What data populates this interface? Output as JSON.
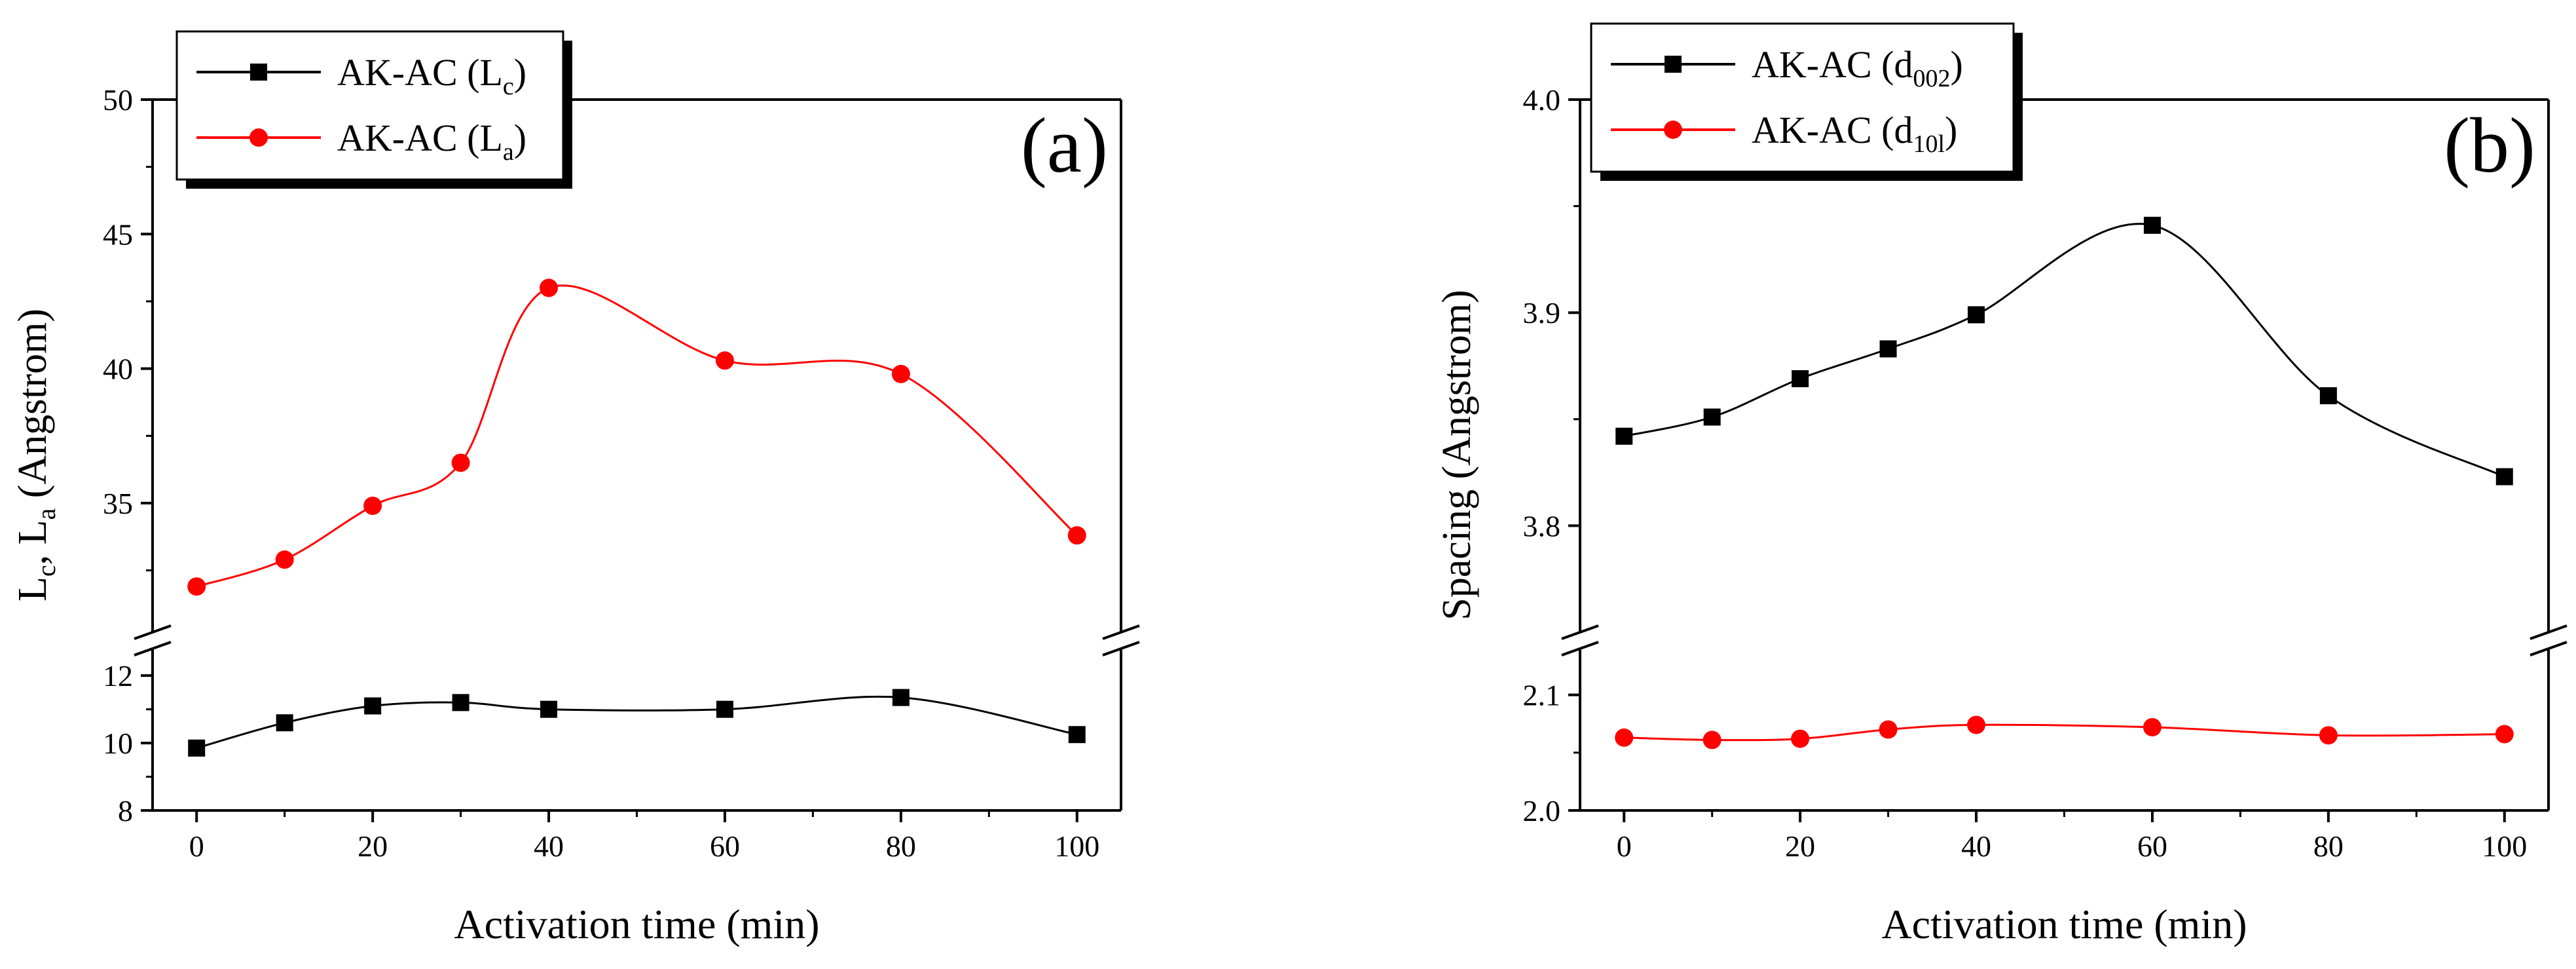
{
  "chart_data": [
    {
      "type": "scatter",
      "panel_label": "(a)",
      "xlabel": "Activation time (min)",
      "ylabel": {
        "main": "L",
        "sub1": "c",
        "sep": ", L",
        "sub2": "a",
        "rest": " (Angstrom)"
      },
      "x_ticks": [
        "0",
        "20",
        "40",
        "60",
        "80",
        "100"
      ],
      "xlim": [
        -5,
        105
      ],
      "y_upper_ticks": [
        "35",
        "40",
        "45",
        "50"
      ],
      "y_upper_range": [
        30.2,
        50
      ],
      "y_lower_ticks": [
        "8",
        "10",
        "12"
      ],
      "y_lower_range": [
        8,
        12.8
      ],
      "axis_break": true,
      "legend_position": "top-left",
      "series": [
        {
          "name": "AK-AC (L",
          "name_sub": "c",
          "name_close": ")",
          "color": "#000000",
          "marker": "square",
          "segment": "lower",
          "x": [
            0,
            10,
            20,
            30,
            40,
            60,
            80,
            100
          ],
          "y": [
            9.85,
            10.6,
            11.1,
            11.2,
            11.0,
            11.0,
            11.35,
            10.25
          ]
        },
        {
          "name": "AK-AC (L",
          "name_sub": "a",
          "name_close": ")",
          "color": "#ff0000",
          "marker": "circle",
          "segment": "upper",
          "x": [
            0,
            10,
            20,
            30,
            40,
            60,
            80,
            100
          ],
          "y": [
            31.9,
            32.9,
            34.9,
            36.5,
            43.0,
            40.3,
            39.8,
            33.8
          ]
        }
      ]
    },
    {
      "type": "scatter",
      "panel_label": "(b)",
      "xlabel": "Activation time (min)",
      "ylabel": {
        "main": "Spacing (Angstrom)"
      },
      "x_ticks": [
        "0",
        "20",
        "40",
        "60",
        "80",
        "100"
      ],
      "xlim": [
        -5,
        105
      ],
      "y_upper_ticks": [
        "3.8",
        "3.9",
        "4.0"
      ],
      "y_upper_range": [
        3.75,
        4.0
      ],
      "y_lower_ticks": [
        "2.0",
        "2.1"
      ],
      "y_lower_range": [
        2.0,
        2.14
      ],
      "axis_break": true,
      "legend_position": "top-left",
      "series": [
        {
          "name": "AK-AC (d",
          "name_sub": "002",
          "name_close": ")",
          "color": "#000000",
          "marker": "square",
          "segment": "upper",
          "x": [
            0,
            10,
            20,
            30,
            40,
            60,
            80,
            100
          ],
          "y": [
            3.842,
            3.851,
            3.869,
            3.883,
            3.899,
            3.941,
            3.861,
            3.823
          ]
        },
        {
          "name": "AK-AC (d",
          "name_sub": "10l",
          "name_close": ")",
          "color": "#ff0000",
          "marker": "circle",
          "segment": "lower",
          "x": [
            0,
            10,
            20,
            30,
            40,
            60,
            80,
            100
          ],
          "y": [
            2.063,
            2.061,
            2.062,
            2.07,
            2.074,
            2.072,
            2.065,
            2.066
          ]
        }
      ]
    }
  ]
}
